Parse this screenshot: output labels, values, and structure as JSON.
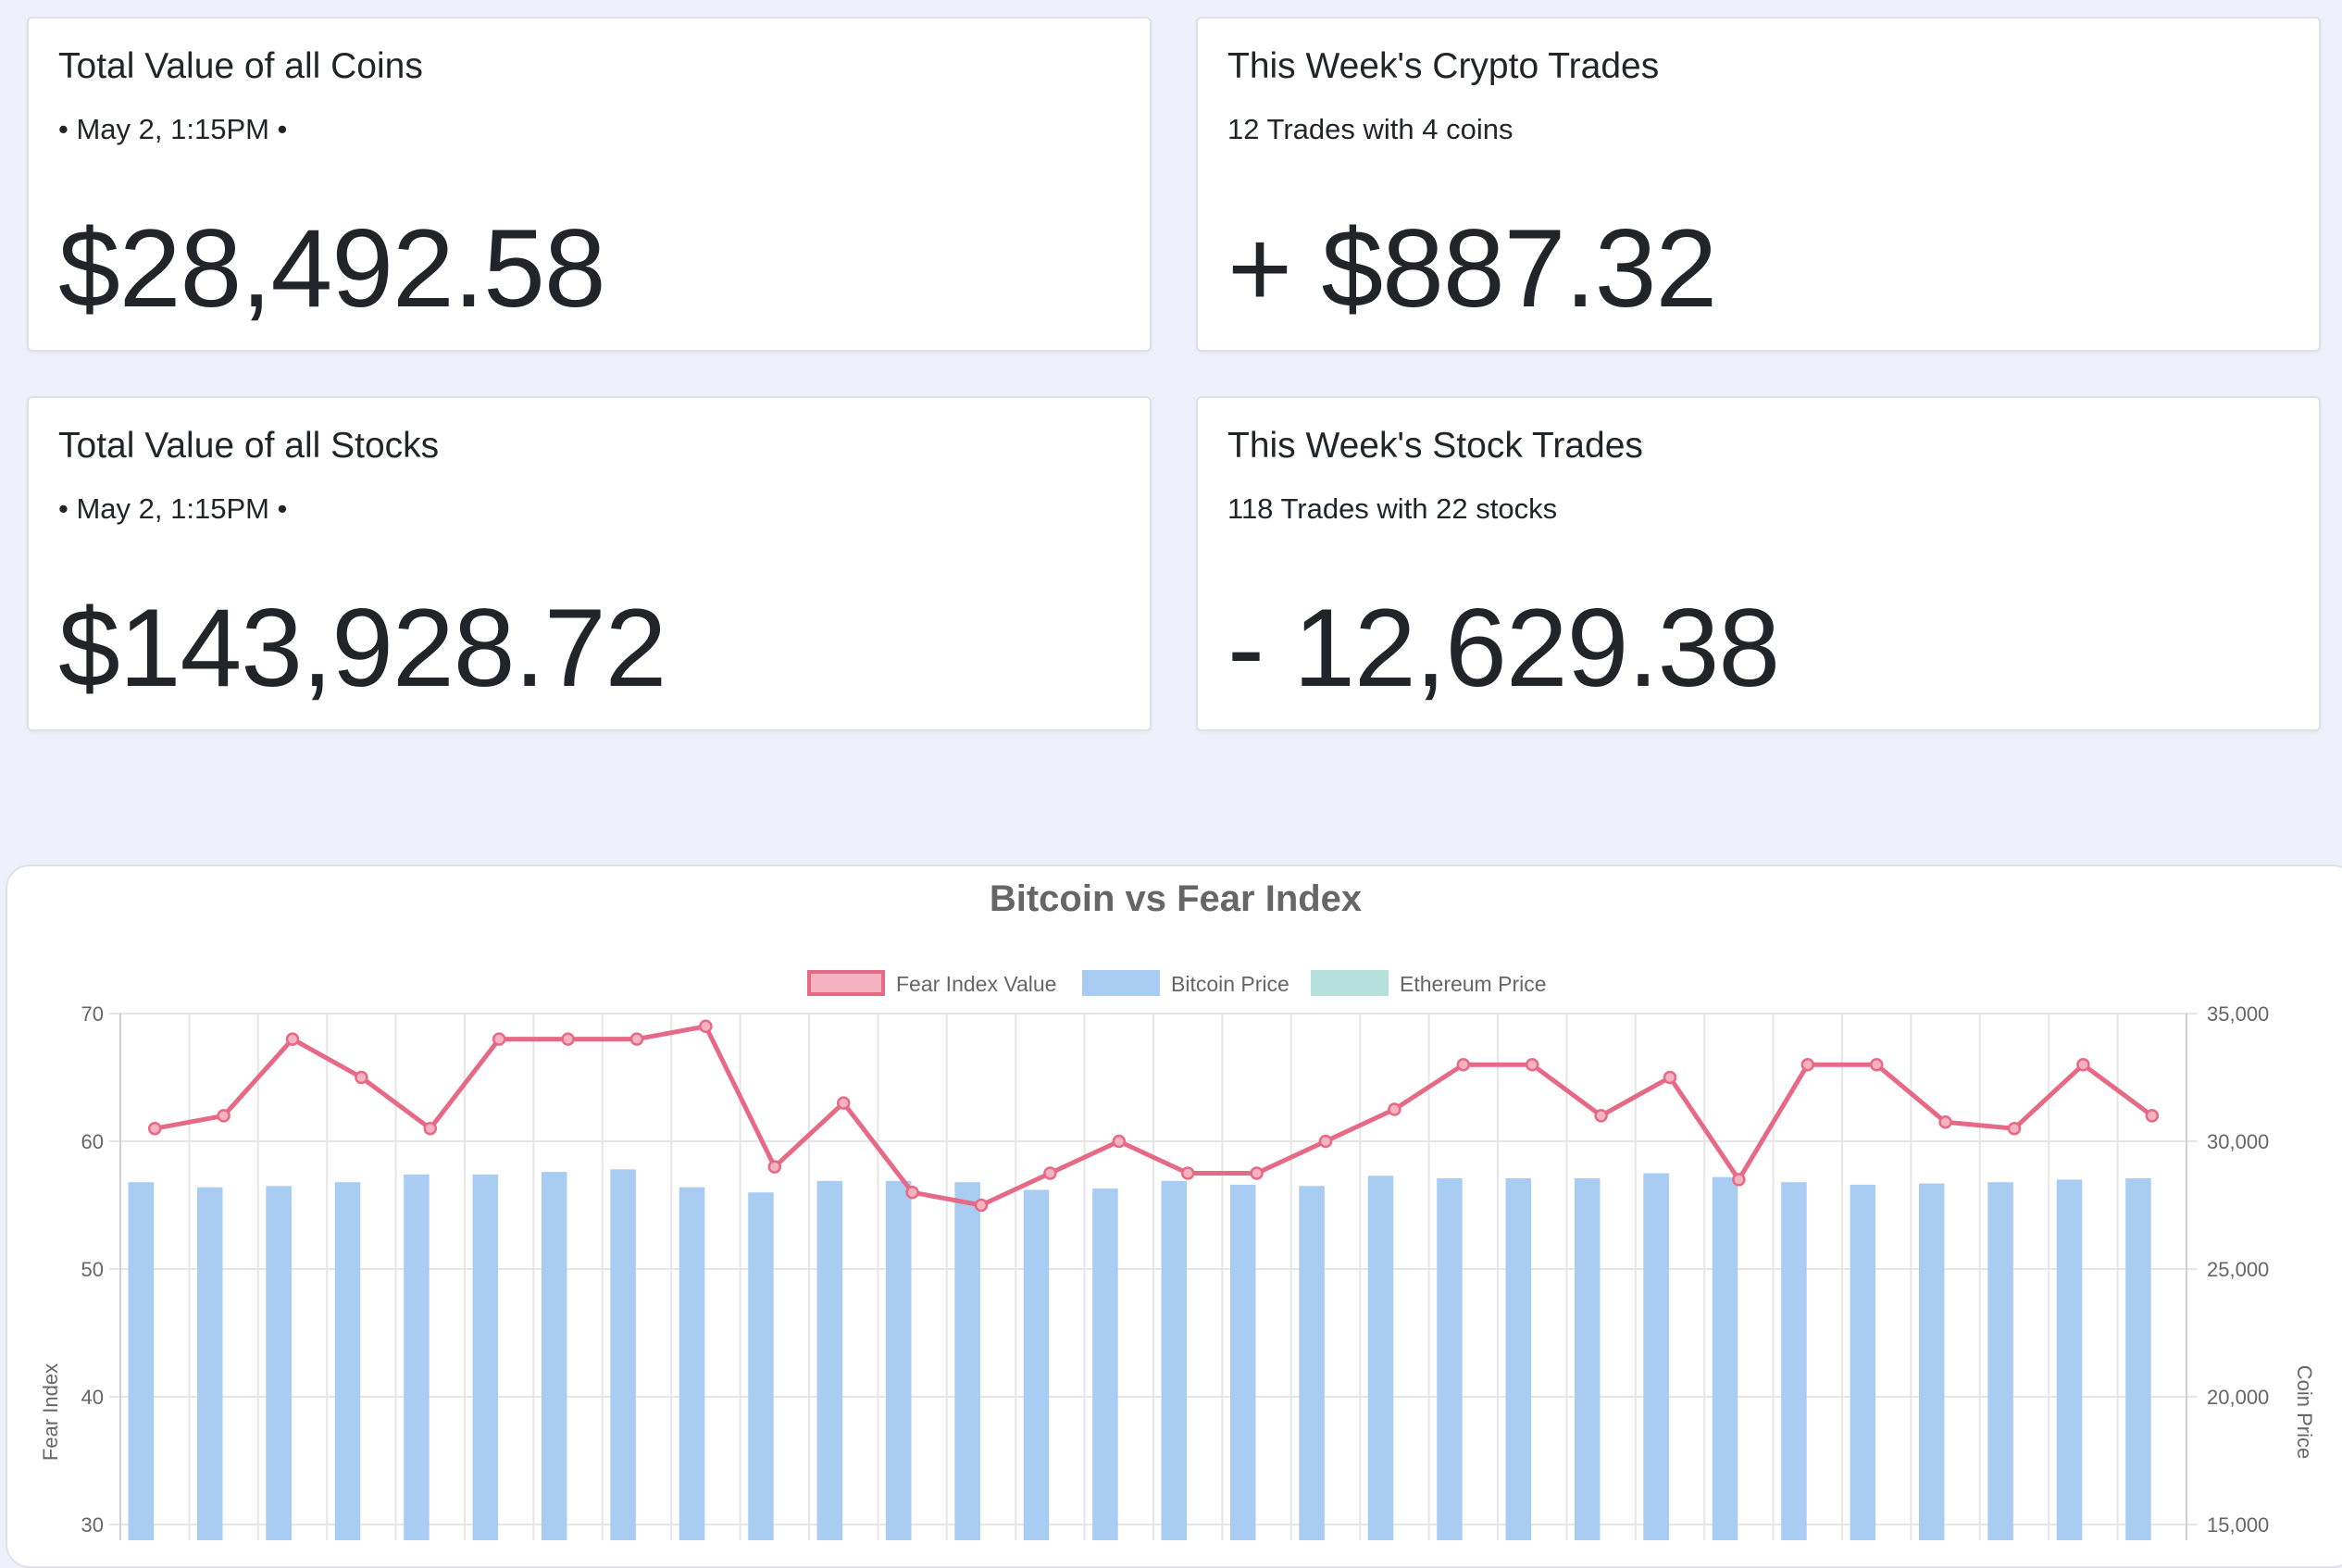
{
  "cards": [
    {
      "title": "Total Value of all Coins",
      "subtitle": "• May 2, 1:15PM •",
      "value": "$28,492.58"
    },
    {
      "title": "This Week's Crypto Trades",
      "subtitle": "12 Trades with 4 coins",
      "value": "+ $887.32"
    },
    {
      "title": "Total Value of all Stocks",
      "subtitle": "• May 2, 1:15PM •",
      "value": "$143,928.72"
    },
    {
      "title": "This Week's Stock Trades",
      "subtitle": "118 Trades with 22 stocks",
      "value": "- 12,629.38"
    }
  ],
  "chart_data": {
    "type": "bar",
    "title": "Bitcoin vs Fear Index",
    "legend_position": "top",
    "grid": true,
    "y_left": {
      "label": "Fear Index",
      "ticks": [
        70,
        60,
        50,
        40,
        30
      ],
      "range": [
        30,
        70
      ]
    },
    "y_right": {
      "label": "Coin Price",
      "ticks": [
        "35,000",
        "30,000",
        "25,000",
        "20,000",
        "15,000"
      ],
      "range": [
        15000,
        35000
      ]
    },
    "series": [
      {
        "name": "Fear Index Value",
        "type": "line",
        "axis": "left",
        "color": "#e66a85",
        "fill": "#f5b3c1",
        "values": [
          61,
          62,
          68,
          65,
          61,
          68,
          68,
          68,
          69,
          58,
          63,
          56,
          55,
          57.5,
          60,
          57.5,
          57.5,
          60,
          62.5,
          66,
          66,
          62,
          65,
          57,
          66,
          66,
          61.5,
          61,
          66,
          62
        ]
      },
      {
        "name": "Bitcoin Price",
        "type": "bar",
        "axis": "right",
        "color": "#a8ccf2",
        "values": [
          28400,
          28200,
          28250,
          28400,
          28700,
          28700,
          28800,
          28900,
          28200,
          28000,
          28450,
          28450,
          28400,
          28100,
          28150,
          28450,
          28300,
          28250,
          28650,
          28550,
          28550,
          28550,
          28750,
          28600,
          28400,
          28300,
          28350,
          28400,
          28500,
          28550
        ]
      },
      {
        "name": "Ethereum Price",
        "type": "bar",
        "axis": "right",
        "color": "#b5e0dc",
        "values": []
      }
    ]
  }
}
